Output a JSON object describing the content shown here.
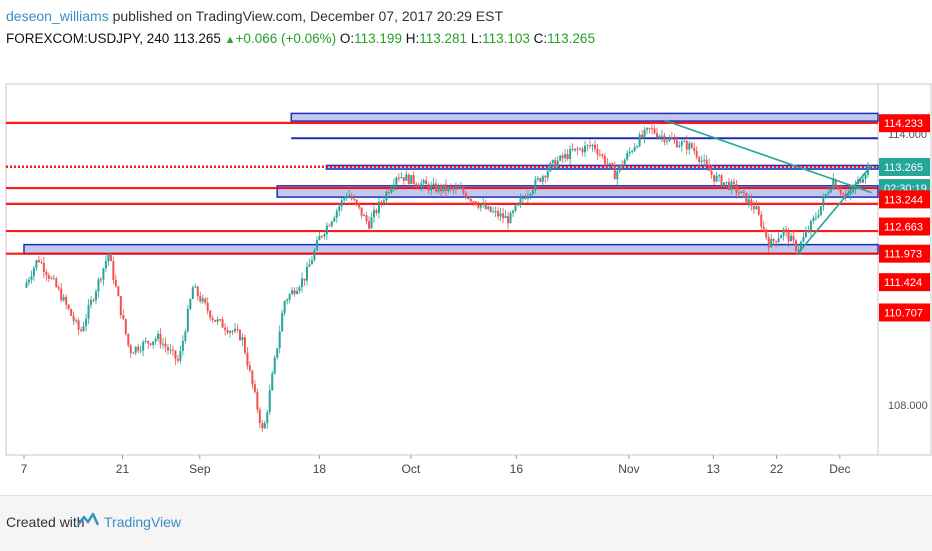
{
  "header": {
    "author": "deseon_williams",
    "published_text": "published on TradingView.com, December 07, 2017 20:29 EST",
    "symbol": "FOREXCOM:USDJPY, 240",
    "last": "113.265",
    "change": "+0.066 (+0.06%)",
    "open_label": "O:",
    "open": "113.199",
    "high_label": "H:",
    "high": "113.281",
    "low_label": "L:",
    "low": "113.103",
    "close_label": "C:",
    "close": "113.265"
  },
  "footer": {
    "created_with": "Created with",
    "brand": "TradingView"
  },
  "chart_data": {
    "type": "candlestick",
    "symbol": "USDJPY",
    "interval": "240",
    "y_range": [
      106.9,
      115.1
    ],
    "x_ticks": [
      {
        "label": "7",
        "d": 0
      },
      {
        "label": "21",
        "d": 14
      },
      {
        "label": "Sep",
        "d": 25
      },
      {
        "label": "18",
        "d": 42
      },
      {
        "label": "Oct",
        "d": 55
      },
      {
        "label": "16",
        "d": 70
      },
      {
        "label": "Nov",
        "d": 86
      },
      {
        "label": "13",
        "d": 98
      },
      {
        "label": "22",
        "d": 107
      },
      {
        "label": "Dec",
        "d": 116
      }
    ],
    "y_tick_labels": [
      "114.000",
      "108.000"
    ],
    "price_labels": [
      {
        "text": "114.233",
        "price": 114.233,
        "color": "#ff0000"
      },
      {
        "text": "113.265",
        "price": 113.265,
        "color": "#26a69a"
      },
      {
        "text": "02:30:19",
        "price": 112.8,
        "color": "#26a69a"
      },
      {
        "text": "113.244",
        "price": 112.55,
        "color": "#ff0000"
      },
      {
        "text": "112.663",
        "price": 111.95,
        "color": "#ff0000"
      },
      {
        "text": "111.973",
        "price": 111.35,
        "color": "#ff0000"
      },
      {
        "text": "111.424",
        "price": 110.72,
        "color": "#ff0000"
      },
      {
        "text": "110.707",
        "price": 110.05,
        "color": "#ff0000"
      }
    ],
    "horizontal_lines": [
      {
        "price": 114.24,
        "color": "#ff0000"
      },
      {
        "price": 113.27,
        "color": "#ff0000",
        "dotted": true
      },
      {
        "price": 112.8,
        "color": "#ff0000"
      },
      {
        "price": 112.45,
        "color": "#ff0000"
      },
      {
        "price": 111.85,
        "color": "#ff0000"
      },
      {
        "price": 111.35,
        "color": "#ff0000"
      }
    ],
    "zones": [
      {
        "top": 114.45,
        "bottom": 114.28,
        "start_d": 38
      },
      {
        "top": 113.3,
        "bottom": 113.22,
        "start_d": 43
      },
      {
        "top": 112.85,
        "bottom": 112.6,
        "start_d": 36
      },
      {
        "top": 111.55,
        "bottom": 111.35,
        "start_d": 0
      }
    ],
    "blue_lines": [
      {
        "price": 113.9,
        "start_d": 38
      }
    ],
    "trend_lines": [
      {
        "d1": 91,
        "p1": 114.3,
        "d2": 120.5,
        "p2": 112.7,
        "color": "#26a69a"
      },
      {
        "d1": 110,
        "p1": 111.35,
        "d2": 120.5,
        "p2": 113.3,
        "color": "#26a69a"
      }
    ],
    "candles": {
      "colors": {
        "up": "#26a69a",
        "down": "#ef5350"
      },
      "days": 120,
      "keypoints": [
        {
          "d": 0,
          "p": 110.6
        },
        {
          "d": 2,
          "p": 111.25
        },
        {
          "d": 5,
          "p": 110.5
        },
        {
          "d": 8,
          "p": 109.6
        },
        {
          "d": 12,
          "p": 111.35
        },
        {
          "d": 15,
          "p": 109.2
        },
        {
          "d": 19,
          "p": 109.5
        },
        {
          "d": 22,
          "p": 108.95
        },
        {
          "d": 24,
          "p": 110.6
        },
        {
          "d": 27,
          "p": 109.9
        },
        {
          "d": 31,
          "p": 109.5
        },
        {
          "d": 34,
          "p": 107.35
        },
        {
          "d": 37,
          "p": 110.3
        },
        {
          "d": 40,
          "p": 110.85
        },
        {
          "d": 42,
          "p": 111.7
        },
        {
          "d": 46,
          "p": 112.7
        },
        {
          "d": 49,
          "p": 112.0
        },
        {
          "d": 53,
          "p": 113.1
        },
        {
          "d": 58,
          "p": 112.8
        },
        {
          "d": 62,
          "p": 112.75
        },
        {
          "d": 66,
          "p": 112.3
        },
        {
          "d": 69,
          "p": 112.1
        },
        {
          "d": 71,
          "p": 112.6
        },
        {
          "d": 75,
          "p": 113.3
        },
        {
          "d": 78,
          "p": 113.6
        },
        {
          "d": 81,
          "p": 113.75
        },
        {
          "d": 84,
          "p": 113.1
        },
        {
          "d": 87,
          "p": 113.8
        },
        {
          "d": 89,
          "p": 114.1
        },
        {
          "d": 92,
          "p": 113.85
        },
        {
          "d": 95,
          "p": 113.7
        },
        {
          "d": 98,
          "p": 113.05
        },
        {
          "d": 101,
          "p": 112.8
        },
        {
          "d": 104,
          "p": 112.35
        },
        {
          "d": 106,
          "p": 111.55
        },
        {
          "d": 108,
          "p": 111.85
        },
        {
          "d": 110,
          "p": 111.45
        },
        {
          "d": 113,
          "p": 112.3
        },
        {
          "d": 115,
          "p": 113.0
        },
        {
          "d": 117,
          "p": 112.55
        },
        {
          "d": 120,
          "p": 113.27
        }
      ]
    }
  }
}
